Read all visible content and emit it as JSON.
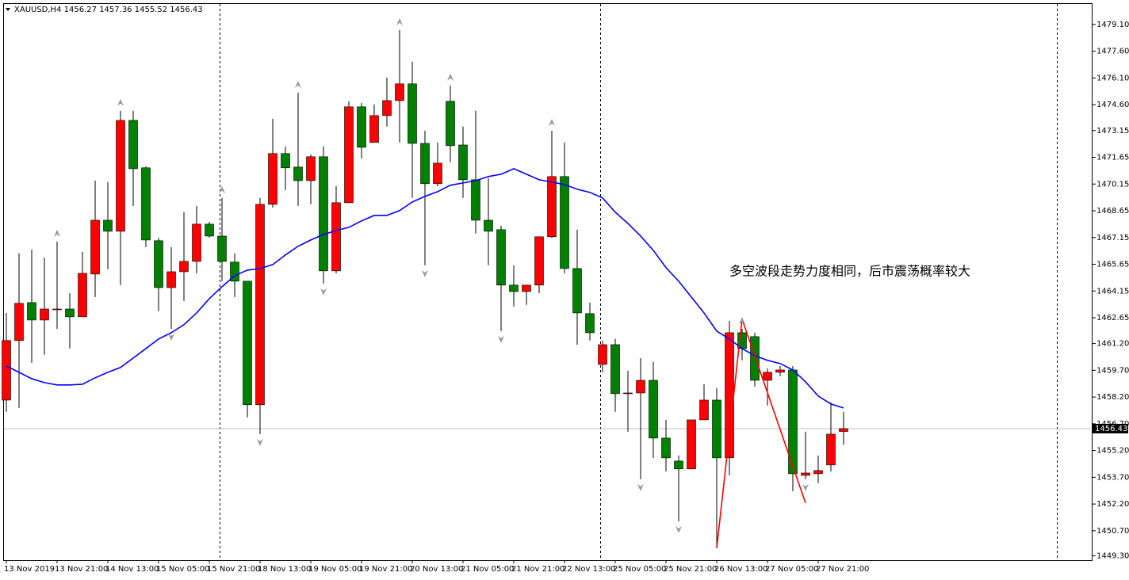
{
  "chart_data": {
    "type": "candlestick",
    "symbol": "XAUUSD,H4",
    "categories": [
      "13 Nov 2019",
      null,
      null,
      null,
      "13 Nov 21:00",
      null,
      null,
      null,
      "14 Nov 13:00",
      null,
      null,
      null,
      "15 Nov 05:00",
      null,
      null,
      null,
      "15 Nov 21:00",
      null,
      null,
      null,
      "18 Nov 13:00",
      null,
      null,
      null,
      "19 Nov 05:00",
      null,
      null,
      null,
      "19 Nov 21:00",
      null,
      null,
      null,
      "20 Nov 13:00",
      null,
      null,
      null,
      "21 Nov 05:00",
      null,
      null,
      null,
      "21 Nov 21:00",
      null,
      null,
      null,
      "22 Nov 13:00",
      null,
      null,
      null,
      "25 Nov 05:00",
      null,
      null,
      null,
      "25 Nov 21:00",
      null,
      null,
      null,
      "26 Nov 13:00",
      null,
      null,
      null,
      "27 Nov 05:00",
      null,
      null,
      null,
      "27 Nov 21:00",
      null,
      null
    ],
    "open": [
      1458.03,
      1461.37,
      1463.5,
      1462.52,
      1463.1,
      1463.14,
      1462.7,
      1465.1,
      1468.12,
      1467.5,
      1473.72,
      1471.06,
      1466.97,
      1464.34,
      1465.23,
      1465.81,
      1467.9,
      1467.23,
      1465.77,
      1464.7,
      1457.77,
      1469.01,
      1471.86,
      1471.1,
      1470.34,
      1471.68,
      1465.28,
      1469.1,
      1474.48,
      1472.48,
      1473.99,
      1474.83,
      1475.77,
      1472.43,
      1470.17,
      1474.79,
      1472.34,
      1470.39,
      1468.12,
      1467.59,
      1464.48,
      1464.12,
      1464.48,
      1467.19,
      1470.57,
      1465.41,
      1462.88,
      1460.03,
      1461.14,
      1458.39,
      1458.43,
      1459.14,
      1455.9,
      1454.61,
      1454.17,
      1456.92,
      1458.03,
      1454.79,
      1461.81,
      1461.59,
      1459.14,
      1459.59,
      1459.72,
      1453.81,
      1453.9,
      1454.39,
      1456.27
    ],
    "high": [
      1462.92,
      1466.26,
      1466.48,
      1466.03,
      1466.92,
      1464.03,
      1466.34,
      1470.34,
      1470.26,
      1474.26,
      1474.26,
      1471.14,
      1467.14,
      1466.61,
      1468.57,
      1468.92,
      1468.03,
      1469.37,
      1466.26,
      1464.7,
      1469.37,
      1473.81,
      1472.26,
      1475.28,
      1471.81,
      1472.26,
      1470.03,
      1474.79,
      1474.7,
      1474.61,
      1476.12,
      1478.79,
      1477.01,
      1473.14,
      1472.48,
      1475.68,
      1473.37,
      1474.26,
      1470.48,
      1467.81,
      1465.59,
      1464.48,
      1467.19,
      1473.14,
      1472.48,
      1467.59,
      1463.5,
      1461.37,
      1461.46,
      1459.68,
      1460.39,
      1460.17,
      1456.92,
      1454.92,
      1456.92,
      1458.92,
      1458.7,
      1462.48,
      1462.03,
      1461.81,
      1459.81,
      1459.94,
      1459.94,
      1456.26,
      1454.92,
      1457.9,
      1457.36
    ],
    "low": [
      1457.37,
      1457.59,
      1460.12,
      1460.57,
      1462.03,
      1460.92,
      1462.7,
      1463.81,
      1465.37,
      1464.48,
      1468.92,
      1466.61,
      1463.01,
      1462.03,
      1463.59,
      1465.14,
      1467.14,
      1464.7,
      1463.81,
      1457.06,
      1456.12,
      1468.83,
      1469.81,
      1468.92,
      1469.01,
      1464.57,
      1465.14,
      1469.1,
      1471.59,
      1472.48,
      1473.37,
      1472.48,
      1469.37,
      1465.59,
      1470.03,
      1471.37,
      1469.37,
      1467.37,
      1465.59,
      1461.9,
      1463.28,
      1463.37,
      1464.03,
      1467.14,
      1465.14,
      1461.14,
      1461.37,
      1459.59,
      1457.37,
      1456.26,
      1453.59,
      1454.79,
      1454.03,
      1451.23,
      1454.17,
      1456.92,
      1449.81,
      1453.81,
      1460.26,
      1458.79,
      1457.72,
      1459.37,
      1452.92,
      1453.59,
      1453.37,
      1454.03,
      1455.52
    ],
    "close": [
      1461.37,
      1463.46,
      1462.52,
      1463.14,
      1463.14,
      1462.7,
      1465.14,
      1468.12,
      1467.5,
      1473.72,
      1471.01,
      1467.01,
      1464.34,
      1465.23,
      1465.81,
      1467.9,
      1467.23,
      1465.81,
      1464.7,
      1457.77,
      1469.01,
      1471.86,
      1471.06,
      1470.34,
      1471.68,
      1465.28,
      1469.1,
      1474.48,
      1472.21,
      1473.99,
      1474.83,
      1475.77,
      1472.43,
      1470.17,
      1471.32,
      1472.3,
      1470.39,
      1468.12,
      1467.5,
      1464.48,
      1464.12,
      1464.48,
      1467.19,
      1470.57,
      1465.41,
      1462.92,
      1461.81,
      1461.14,
      1458.39,
      1458.43,
      1459.14,
      1455.9,
      1454.79,
      1454.17,
      1456.92,
      1458.03,
      1454.79,
      1461.81,
      1460.92,
      1459.14,
      1459.59,
      1459.72,
      1453.9,
      1453.94,
      1454.08,
      1456.12,
      1456.43
    ],
    "up_color": "#ff0000",
    "down_color": "#008000",
    "ylim": [
      1449.05,
      1480.25
    ],
    "yticks": [
      {
        "value": 1479.1,
        "label": "1479.10"
      },
      {
        "value": 1477.6,
        "label": "1477.60"
      },
      {
        "value": 1476.1,
        "label": "1476.10"
      },
      {
        "value": 1474.6,
        "label": "1474.60"
      },
      1473.15,
      1471.65,
      1470.15,
      1468.65,
      1467.15,
      1465.65,
      1464.15,
      1462.65,
      {
        "value": 1461.2,
        "label": "1461.20"
      },
      {
        "value": 1459.7,
        "label": "1459.70"
      },
      {
        "value": 1458.2,
        "label": "1458.20"
      },
      {
        "value": 1456.7,
        "label": "1456.70"
      },
      {
        "value": 1455.2,
        "label": "1455.20"
      },
      {
        "value": 1453.7,
        "label": "1453.70"
      },
      {
        "value": 1452.2,
        "label": "1452.20"
      },
      {
        "value": 1450.7,
        "label": "1450.70"
      },
      {
        "value": 1449.3,
        "label": "1449.30"
      }
    ],
    "ma": {
      "color": "#0000ff",
      "values": [
        1459.94,
        1459.59,
        1459.23,
        1459.01,
        1458.88,
        1458.88,
        1458.92,
        1459.28,
        1459.59,
        1459.86,
        1460.39,
        1460.92,
        1461.46,
        1461.81,
        1462.26,
        1462.92,
        1463.72,
        1464.39,
        1465.01,
        1465.32,
        1465.41,
        1465.63,
        1466.17,
        1466.66,
        1467.01,
        1467.32,
        1467.54,
        1467.72,
        1468.08,
        1468.39,
        1468.39,
        1468.66,
        1469.14,
        1469.46,
        1469.72,
        1470.08,
        1470.21,
        1470.34,
        1470.57,
        1470.7,
        1471.01,
        1470.7,
        1470.39,
        1470.26,
        1470.12,
        1469.86,
        1469.68,
        1469.37,
        1468.57,
        1467.94,
        1467.23,
        1466.43,
        1465.46,
        1464.7,
        1463.81,
        1462.92,
        1461.9,
        1461.46,
        1460.92,
        1460.52,
        1460.26,
        1460.08,
        1459.72,
        1459.06,
        1458.26,
        1457.81,
        1457.59
      ]
    },
    "zigzag": {
      "color": "#ff0000",
      "x": [
        56,
        58,
        63
      ],
      "values": [
        1449.72,
        1462.57,
        1452.26
      ]
    },
    "fractals": {
      "color": "#9a9a9a",
      "up": [
        4,
        9,
        17,
        23,
        31,
        35,
        43,
        58
      ],
      "down": [
        13,
        20,
        25,
        33,
        39,
        50,
        53,
        63
      ]
    },
    "annotation": {
      "text": "多空波段走势力度相同，后市震荡概率较大",
      "color": "#ff0000"
    }
  }
}
